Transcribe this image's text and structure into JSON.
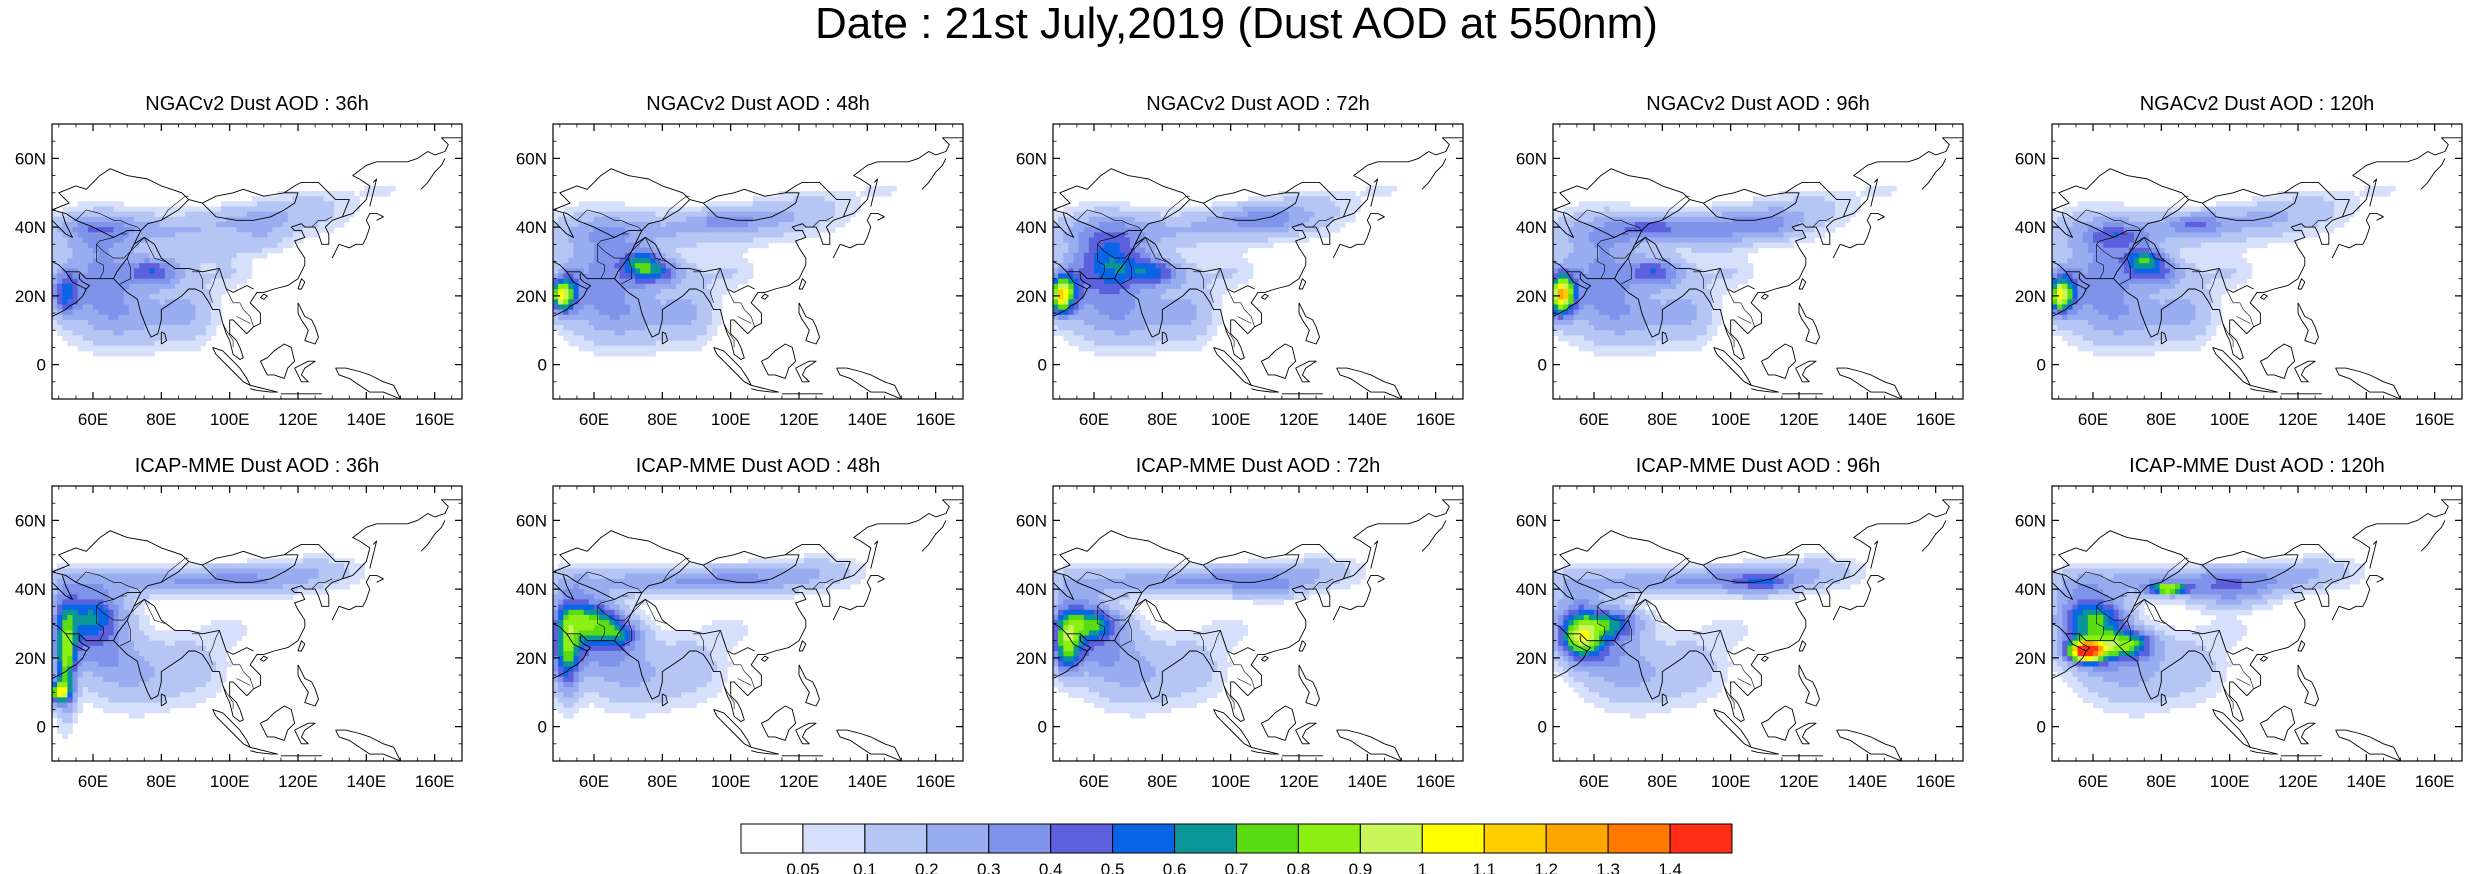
{
  "title": "Date : 21st July,2019 (Dust AOD at 550nm)",
  "panels": [
    {
      "title": "NGACv2 Dust AOD : 36h",
      "model": "NGACv2",
      "lead": "36h"
    },
    {
      "title": "NGACv2 Dust AOD : 48h",
      "model": "NGACv2",
      "lead": "48h"
    },
    {
      "title": "NGACv2 Dust AOD : 72h",
      "model": "NGACv2",
      "lead": "72h"
    },
    {
      "title": "NGACv2 Dust AOD : 96h",
      "model": "NGACv2",
      "lead": "96h"
    },
    {
      "title": "NGACv2 Dust AOD : 120h",
      "model": "NGACv2",
      "lead": "120h"
    },
    {
      "title": "ICAP-MME Dust AOD : 36h",
      "model": "ICAP-MME",
      "lead": "36h"
    },
    {
      "title": "ICAP-MME Dust AOD : 48h",
      "model": "ICAP-MME",
      "lead": "48h"
    },
    {
      "title": "ICAP-MME Dust AOD : 72h",
      "model": "ICAP-MME",
      "lead": "72h"
    },
    {
      "title": "ICAP-MME Dust AOD : 96h",
      "model": "ICAP-MME",
      "lead": "96h"
    },
    {
      "title": "ICAP-MME Dust AOD : 120h",
      "model": "ICAP-MME",
      "lead": "120h"
    }
  ],
  "axes": {
    "lon_range": [
      48,
      168
    ],
    "lat_range": [
      -10,
      70
    ],
    "x_ticks": [
      60,
      80,
      100,
      120,
      140,
      160
    ],
    "x_tick_labels": [
      "60E",
      "80E",
      "100E",
      "120E",
      "140E",
      "160E"
    ],
    "y_ticks": [
      0,
      20,
      40,
      60
    ],
    "y_tick_labels": [
      "0",
      "20N",
      "40N",
      "60N"
    ]
  },
  "colorbar": {
    "colors": [
      "#ffffff",
      "#d6e0fa",
      "#b6c6f4",
      "#98acef",
      "#7f93ea",
      "#5c60dd",
      "#0a64e6",
      "#0a9696",
      "#5adc14",
      "#8cf014",
      "#c8f55a",
      "#ffff00",
      "#ffcd00",
      "#ffa500",
      "#ff7800",
      "#ff2d14"
    ],
    "labels": [
      "0.05",
      "0.1",
      "0.2",
      "0.3",
      "0.4",
      "0.5",
      "0.6",
      "0.7",
      "0.8",
      "0.9",
      "1",
      "1.1",
      "1.2",
      "1.3",
      "1.4"
    ]
  }
}
